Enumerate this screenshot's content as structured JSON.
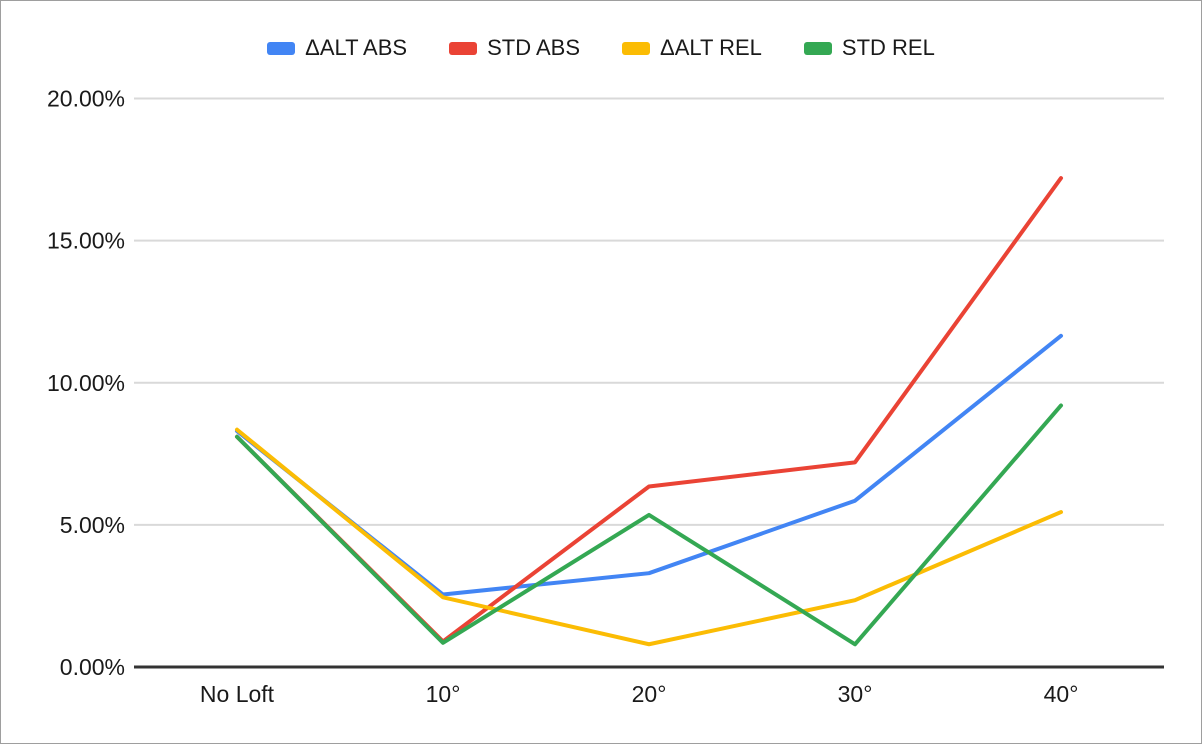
{
  "chart_data": {
    "type": "line",
    "categories": [
      "No Loft",
      "10°",
      "20°",
      "30°",
      "40°"
    ],
    "series": [
      {
        "id": "dalt-abs",
        "name": "ΔALT ABS",
        "color": "#4285F4",
        "values": [
          8.3,
          2.55,
          3.3,
          5.85,
          11.65
        ]
      },
      {
        "id": "std-abs",
        "name": "STD ABS",
        "color": "#EA4335",
        "values": [
          8.1,
          0.9,
          6.35,
          7.2,
          17.2
        ]
      },
      {
        "id": "dalt-rel",
        "name": "ΔALT REL",
        "color": "#FBBC04",
        "values": [
          8.35,
          2.45,
          0.8,
          2.35,
          5.45
        ]
      },
      {
        "id": "std-rel",
        "name": "STD REL",
        "color": "#34A853",
        "values": [
          8.1,
          0.85,
          5.35,
          0.8,
          9.2
        ]
      }
    ],
    "title": "",
    "xlabel": "",
    "ylabel": "",
    "y_axis": {
      "min": 0,
      "max": 20,
      "tick_step": 5,
      "tick_labels": [
        "0.00%",
        "5.00%",
        "10.00%",
        "15.00%",
        "20.00%"
      ]
    },
    "ylim": [
      0,
      20
    ],
    "grid": true,
    "legend_position": "top",
    "colors": {
      "gridline": "#d9d9d9",
      "axis_line": "#333333",
      "text": "#1a1a1a",
      "background": "#ffffff",
      "border": "#9e9e9e"
    }
  }
}
